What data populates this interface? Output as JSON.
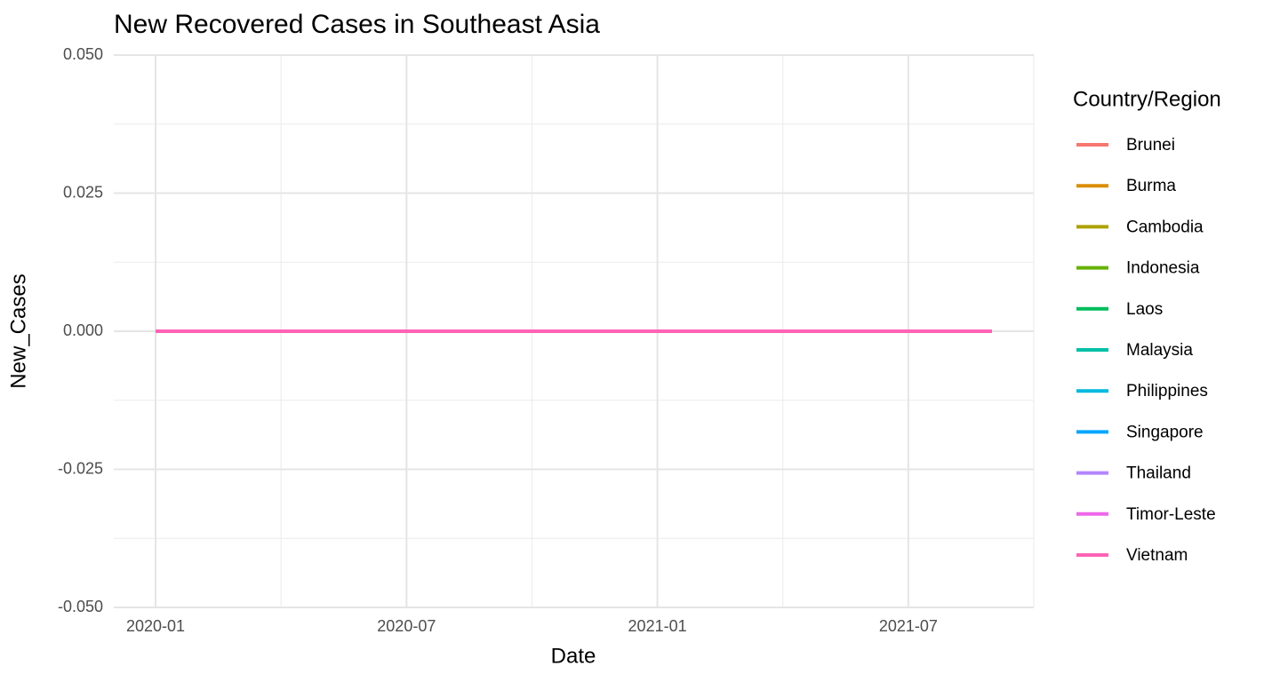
{
  "chart_data": {
    "type": "line",
    "title": "New Recovered Cases in Southeast Asia",
    "x_label": "Date",
    "y_label": "New_Cases",
    "legend_title": "Country/Region",
    "x": [
      "2020-01",
      "2020-02",
      "2020-03",
      "2020-04",
      "2020-05",
      "2020-06",
      "2020-07",
      "2020-08",
      "2020-09",
      "2020-10",
      "2020-11",
      "2020-12",
      "2021-01",
      "2021-02",
      "2021-03",
      "2021-04",
      "2021-05",
      "2021-06",
      "2021-07",
      "2021-08",
      "2021-09"
    ],
    "xlim": [
      "2019-12",
      "2021-10"
    ],
    "xticks": [
      "2020-01",
      "2020-07",
      "2021-01",
      "2021-07"
    ],
    "ylim": [
      -0.05,
      0.05
    ],
    "yticks": [
      {
        "value": -0.05,
        "label": "-0.050"
      },
      {
        "value": -0.025,
        "label": "-0.025"
      },
      {
        "value": 0,
        "label": "0.000"
      },
      {
        "value": 0.025,
        "label": "0.025"
      },
      {
        "value": 0.05,
        "label": "0.050"
      }
    ],
    "grid": true,
    "legend": "right",
    "series": [
      {
        "name": "Brunei",
        "color": "#F8766D",
        "values": [
          0,
          0,
          0,
          0,
          0,
          0,
          0,
          0,
          0,
          0,
          0,
          0,
          0,
          0,
          0,
          0,
          0,
          0,
          0,
          0,
          0
        ]
      },
      {
        "name": "Burma",
        "color": "#DB8E00",
        "values": [
          0,
          0,
          0,
          0,
          0,
          0,
          0,
          0,
          0,
          0,
          0,
          0,
          0,
          0,
          0,
          0,
          0,
          0,
          0,
          0,
          0
        ]
      },
      {
        "name": "Cambodia",
        "color": "#AEA200",
        "values": [
          0,
          0,
          0,
          0,
          0,
          0,
          0,
          0,
          0,
          0,
          0,
          0,
          0,
          0,
          0,
          0,
          0,
          0,
          0,
          0,
          0
        ]
      },
      {
        "name": "Indonesia",
        "color": "#64B200",
        "values": [
          0,
          0,
          0,
          0,
          0,
          0,
          0,
          0,
          0,
          0,
          0,
          0,
          0,
          0,
          0,
          0,
          0,
          0,
          0,
          0,
          0
        ]
      },
      {
        "name": "Laos",
        "color": "#00BD5C",
        "values": [
          0,
          0,
          0,
          0,
          0,
          0,
          0,
          0,
          0,
          0,
          0,
          0,
          0,
          0,
          0,
          0,
          0,
          0,
          0,
          0,
          0
        ]
      },
      {
        "name": "Malaysia",
        "color": "#00C1A7",
        "values": [
          0,
          0,
          0,
          0,
          0,
          0,
          0,
          0,
          0,
          0,
          0,
          0,
          0,
          0,
          0,
          0,
          0,
          0,
          0,
          0,
          0
        ]
      },
      {
        "name": "Philippines",
        "color": "#00BADE",
        "values": [
          0,
          0,
          0,
          0,
          0,
          0,
          0,
          0,
          0,
          0,
          0,
          0,
          0,
          0,
          0,
          0,
          0,
          0,
          0,
          0,
          0
        ]
      },
      {
        "name": "Singapore",
        "color": "#00A6FF",
        "values": [
          0,
          0,
          0,
          0,
          0,
          0,
          0,
          0,
          0,
          0,
          0,
          0,
          0,
          0,
          0,
          0,
          0,
          0,
          0,
          0,
          0
        ]
      },
      {
        "name": "Thailand",
        "color": "#B385FF",
        "values": [
          0,
          0,
          0,
          0,
          0,
          0,
          0,
          0,
          0,
          0,
          0,
          0,
          0,
          0,
          0,
          0,
          0,
          0,
          0,
          0,
          0
        ]
      },
      {
        "name": "Timor-Leste",
        "color": "#EF67EB",
        "values": [
          0,
          0,
          0,
          0,
          0,
          0,
          0,
          0,
          0,
          0,
          0,
          0,
          0,
          0,
          0,
          0,
          0,
          0,
          0,
          0,
          0
        ]
      },
      {
        "name": "Vietnam",
        "color": "#FF63B6",
        "values": [
          0,
          0,
          0,
          0,
          0,
          0,
          0,
          0,
          0,
          0,
          0,
          0,
          0,
          0,
          0,
          0,
          0,
          0,
          0,
          0,
          0
        ]
      }
    ]
  }
}
